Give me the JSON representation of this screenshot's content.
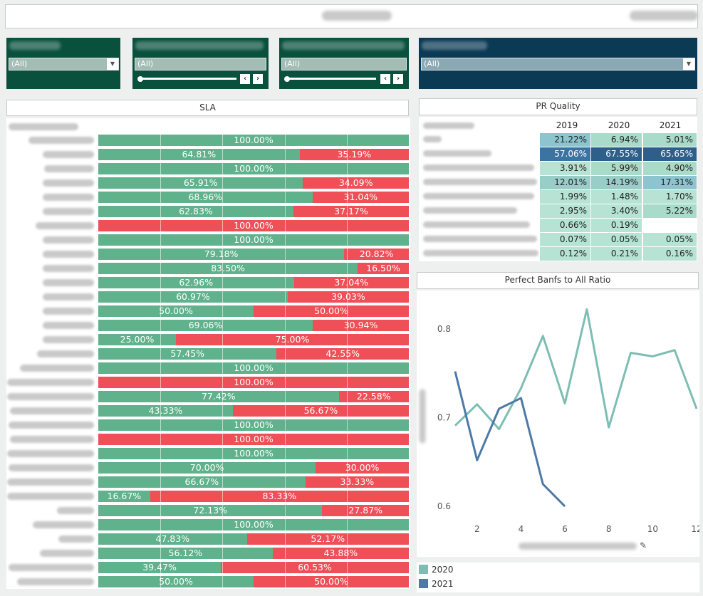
{
  "filters": [
    {
      "name": "source-code",
      "value": "(All)",
      "color": "#09503d"
    },
    {
      "name": "year",
      "value": "(All)",
      "color": "#09503d"
    },
    {
      "name": "month",
      "value": "(All)",
      "color": "#09503d"
    },
    {
      "name": "group-company",
      "value": "(All)",
      "color": "#0b3a54"
    }
  ],
  "sla": {
    "title": "SLA",
    "rows": [
      {
        "green": 100.0,
        "red": 0
      },
      {
        "green": 64.81,
        "red": 35.19
      },
      {
        "green": 100.0,
        "red": 0
      },
      {
        "green": 65.91,
        "red": 34.09
      },
      {
        "green": 68.96,
        "red": 31.04
      },
      {
        "green": 62.83,
        "red": 37.17
      },
      {
        "green": 0,
        "red": 100.0
      },
      {
        "green": 100.0,
        "red": 0
      },
      {
        "green": 79.18,
        "red": 20.82
      },
      {
        "green": 83.5,
        "red": 16.5
      },
      {
        "green": 62.96,
        "red": 37.04
      },
      {
        "green": 60.97,
        "red": 39.03
      },
      {
        "green": 50.0,
        "red": 50.0
      },
      {
        "green": 69.06,
        "red": 30.94
      },
      {
        "green": 25.0,
        "red": 75.0
      },
      {
        "green": 57.45,
        "red": 42.55
      },
      {
        "green": 100.0,
        "red": 0
      },
      {
        "green": 0,
        "red": 100.0
      },
      {
        "green": 77.42,
        "red": 22.58
      },
      {
        "green": 43.33,
        "red": 56.67
      },
      {
        "green": 100.0,
        "red": 0
      },
      {
        "green": 0,
        "red": 100.0
      },
      {
        "green": 100.0,
        "red": 0
      },
      {
        "green": 70.0,
        "red": 30.0
      },
      {
        "green": 66.67,
        "red": 33.33
      },
      {
        "green": 16.67,
        "red": 83.33
      },
      {
        "green": 72.13,
        "red": 27.87
      },
      {
        "green": 100.0,
        "red": 0
      },
      {
        "green": 47.83,
        "red": 52.17
      },
      {
        "green": 56.12,
        "red": 43.88
      },
      {
        "green": 39.47,
        "red": 60.53
      },
      {
        "green": 50.0,
        "red": 50.0
      }
    ],
    "green_color": "#5fb28c",
    "red_color": "#ef4f57"
  },
  "pr_quality": {
    "title": "PR Quality",
    "years": [
      "2019",
      "2020",
      "2021"
    ],
    "rows": [
      [
        "21.22%",
        "6.94%",
        "5.01%"
      ],
      [
        "57.06%",
        "67.55%",
        "65.65%"
      ],
      [
        "3.91%",
        "5.99%",
        "4.90%"
      ],
      [
        "12.01%",
        "14.19%",
        "17.31%"
      ],
      [
        "1.99%",
        "1.48%",
        "1.70%"
      ],
      [
        "2.95%",
        "3.40%",
        "5.22%"
      ],
      [
        "0.66%",
        "0.19%",
        ""
      ],
      [
        "0.07%",
        "0.05%",
        "0.05%"
      ],
      [
        "0.12%",
        "0.21%",
        "0.16%"
      ]
    ]
  },
  "chart_data": {
    "type": "line",
    "title": "Perfect Banfs to All Ratio",
    "xlim": [
      1,
      12
    ],
    "ylim": [
      0.58,
      0.84
    ],
    "x_ticks": [
      "2",
      "4",
      "6",
      "8",
      "10",
      "12"
    ],
    "y_ticks": [
      "0.8",
      "0.7",
      "0.6"
    ],
    "grid": false,
    "legend_position": "bottom-left",
    "series": [
      {
        "name": "2020",
        "color": "#7dbdb4",
        "x": [
          1,
          2,
          3,
          4,
          5,
          6,
          7,
          8,
          9,
          10,
          11,
          12
        ],
        "y": [
          0.691,
          0.715,
          0.687,
          0.733,
          0.792,
          0.716,
          0.822,
          0.689,
          0.773,
          0.769,
          0.776,
          0.71
        ]
      },
      {
        "name": "2021",
        "color": "#4e79a7",
        "x": [
          1,
          2,
          3,
          4,
          5,
          6
        ],
        "y": [
          0.752,
          0.652,
          0.71,
          0.722,
          0.625,
          0.6
        ]
      }
    ]
  }
}
